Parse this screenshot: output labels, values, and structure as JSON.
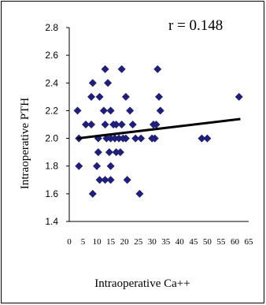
{
  "chart_data": {
    "type": "scatter",
    "title": "",
    "xlabel": "Intraoperative Ca++",
    "ylabel": "Intraoperative PTH",
    "xlim": [
      0,
      65
    ],
    "ylim": [
      1.4,
      2.8
    ],
    "x_ticks": [
      "0",
      "5",
      "10",
      "15",
      "20",
      "25",
      "30",
      "35",
      "40",
      "45",
      "50",
      "55",
      "60",
      "65"
    ],
    "y_ticks": [
      "1.4",
      "1.6",
      "1.8",
      "2.0",
      "2.2",
      "2.4",
      "2.6",
      "2.8"
    ],
    "grid": false,
    "legend": "none",
    "marker_color": "#1f1f7a",
    "trend_color": "#000000",
    "annotation": "r = 0.148",
    "trendline": {
      "x": [
        3,
        62
      ],
      "y": [
        2.0,
        2.14
      ]
    },
    "points": [
      {
        "x": 3,
        "y": 2.2
      },
      {
        "x": 3.5,
        "y": 2.0
      },
      {
        "x": 3.5,
        "y": 1.8
      },
      {
        "x": 6,
        "y": 2.1
      },
      {
        "x": 8,
        "y": 2.3
      },
      {
        "x": 8,
        "y": 2.1
      },
      {
        "x": 8.5,
        "y": 2.4
      },
      {
        "x": 8.5,
        "y": 1.6
      },
      {
        "x": 10,
        "y": 1.8
      },
      {
        "x": 10.5,
        "y": 2.0
      },
      {
        "x": 10.5,
        "y": 1.9
      },
      {
        "x": 11,
        "y": 2.3
      },
      {
        "x": 11,
        "y": 1.7
      },
      {
        "x": 12.5,
        "y": 2.2
      },
      {
        "x": 13,
        "y": 2.5
      },
      {
        "x": 13,
        "y": 2.1
      },
      {
        "x": 13,
        "y": 1.7
      },
      {
        "x": 13.5,
        "y": 2.0
      },
      {
        "x": 14,
        "y": 2.4
      },
      {
        "x": 14.5,
        "y": 1.9
      },
      {
        "x": 15,
        "y": 2.2
      },
      {
        "x": 15,
        "y": 2.0
      },
      {
        "x": 15,
        "y": 1.8
      },
      {
        "x": 15,
        "y": 1.7
      },
      {
        "x": 16,
        "y": 2.1
      },
      {
        "x": 16.5,
        "y": 2.0
      },
      {
        "x": 17,
        "y": 1.9
      },
      {
        "x": 17,
        "y": 2.1
      },
      {
        "x": 18,
        "y": 2.0
      },
      {
        "x": 18.5,
        "y": 1.9
      },
      {
        "x": 19,
        "y": 2.5
      },
      {
        "x": 19,
        "y": 2.1
      },
      {
        "x": 19.5,
        "y": 2.0
      },
      {
        "x": 20.5,
        "y": 2.3
      },
      {
        "x": 20.5,
        "y": 2.0
      },
      {
        "x": 21,
        "y": 1.7
      },
      {
        "x": 22,
        "y": 2.2
      },
      {
        "x": 23,
        "y": 2.1
      },
      {
        "x": 24,
        "y": 2.0
      },
      {
        "x": 25.5,
        "y": 1.6
      },
      {
        "x": 26,
        "y": 2.0
      },
      {
        "x": 30,
        "y": 2.0
      },
      {
        "x": 30.5,
        "y": 2.1
      },
      {
        "x": 31,
        "y": 2.0
      },
      {
        "x": 31.5,
        "y": 2.1
      },
      {
        "x": 32,
        "y": 2.5
      },
      {
        "x": 32.5,
        "y": 2.3
      },
      {
        "x": 33,
        "y": 2.2
      },
      {
        "x": 48,
        "y": 2.0
      },
      {
        "x": 50,
        "y": 2.0
      },
      {
        "x": 61.5,
        "y": 2.3
      }
    ]
  }
}
